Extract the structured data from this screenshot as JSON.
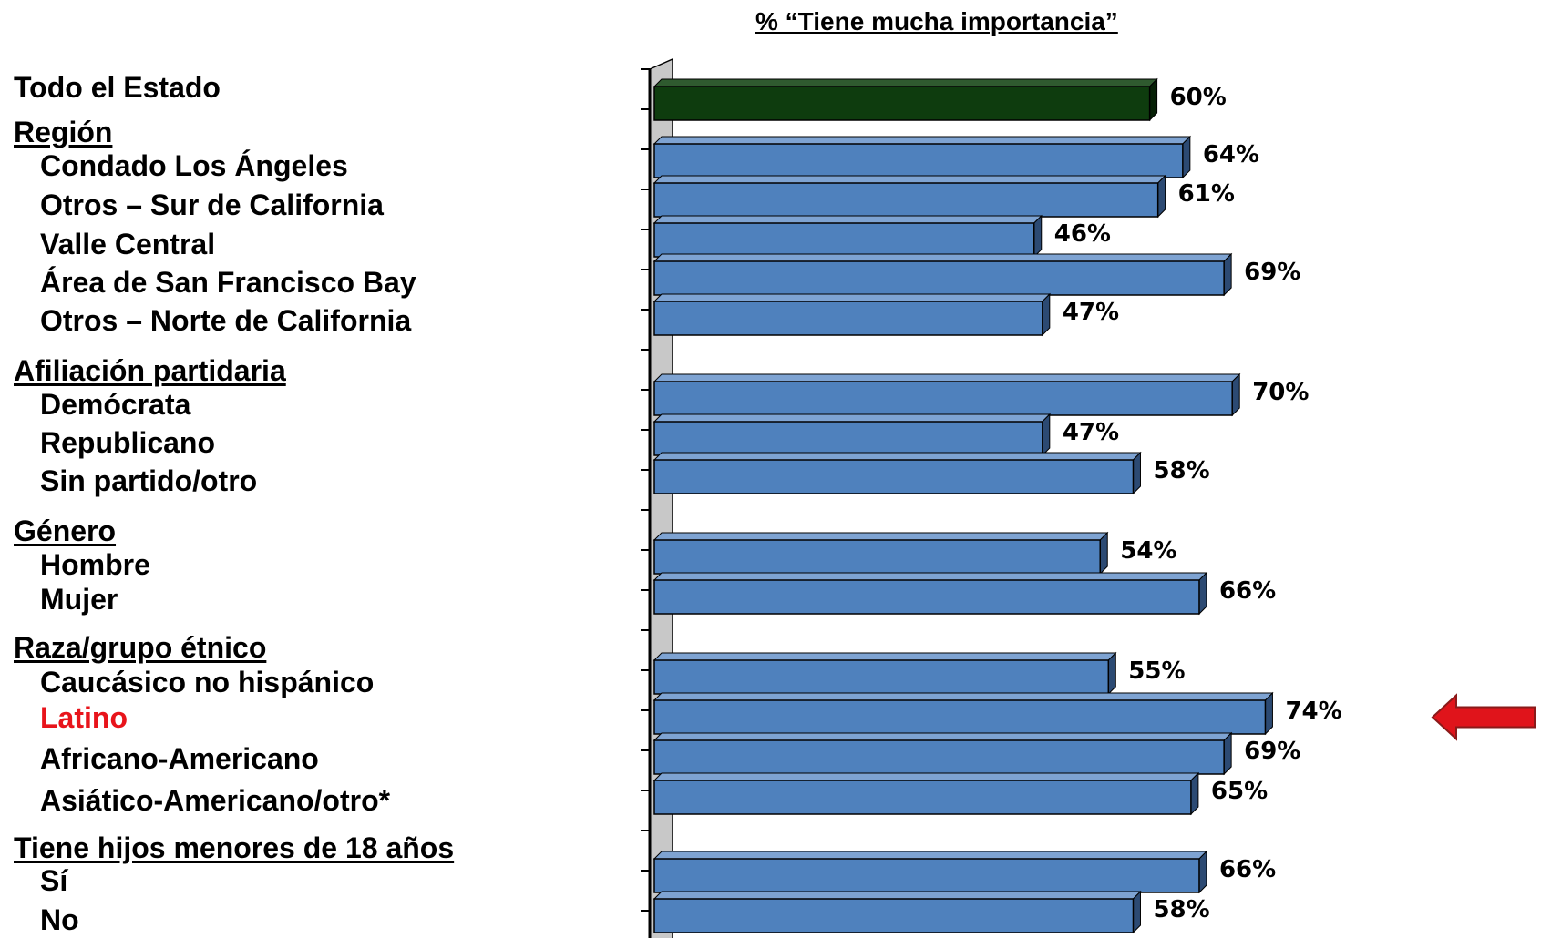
{
  "chart_data": {
    "type": "bar",
    "orientation": "horizontal",
    "title": "% “Tiene mucha importancia”",
    "xlim": [
      0,
      100
    ],
    "colors": {
      "total": "#0e3c0e",
      "bar": "#4f81bd",
      "highlight_label": "#e8141b",
      "arrow": "#e0141b"
    },
    "rows": [
      {
        "label": "Todo el Estado",
        "header": false
      },
      {
        "label": "Región",
        "header": true
      },
      {
        "label": "Condado Los Ángeles",
        "header": false
      },
      {
        "label": "Otros – Sur de California",
        "header": false
      },
      {
        "label": "Valle Central",
        "header": false
      },
      {
        "label": "Área de San Francisco Bay",
        "header": false
      },
      {
        "label": "Otros – Norte de California",
        "header": false
      },
      {
        "label": "Afiliación partidaria",
        "header": true
      },
      {
        "label": "Demócrata",
        "header": false
      },
      {
        "label": "Republicano",
        "header": false
      },
      {
        "label": "Sin partido/otro",
        "header": false
      },
      {
        "label": "Género",
        "header": true
      },
      {
        "label": "Hombre",
        "header": false
      },
      {
        "label": "Mujer",
        "header": false
      },
      {
        "label": "Raza/grupo étnico",
        "header": true
      },
      {
        "label": "Caucásico no hispánico",
        "header": false
      },
      {
        "label": "Latino",
        "header": false,
        "highlight": true
      },
      {
        "label": "Africano-Americano",
        "header": false
      },
      {
        "label": "Asiático-Americano/otro*",
        "header": false
      },
      {
        "label": "Tiene hijos menores de 18 años",
        "header": true
      },
      {
        "label": "Sí",
        "header": false
      },
      {
        "label": "No",
        "header": false
      }
    ],
    "categories": [
      "Todo el Estado",
      "Condado Los Ángeles",
      "Otros – Sur de California",
      "Valle Central",
      "Área de San Francisco Bay",
      "Otros – Norte de California",
      "Demócrata",
      "Republicano",
      "Sin partido/otro",
      "Hombre",
      "Mujer",
      "Caucásico no hispánico",
      "Latino",
      "Africano-Americano",
      "Asiático-Americano/otro*",
      "Sí",
      "No"
    ],
    "values": [
      60,
      64,
      61,
      46,
      69,
      47,
      70,
      47,
      58,
      54,
      66,
      55,
      74,
      69,
      65,
      66,
      58
    ],
    "value_labels": [
      "60%",
      "64%",
      "61%",
      "46%",
      "69%",
      "47%",
      "70%",
      "47%",
      "58%",
      "54%",
      "66%",
      "55%",
      "74%",
      "69%",
      "65%",
      "66%",
      "58%"
    ],
    "highlighted_category": "Latino"
  }
}
